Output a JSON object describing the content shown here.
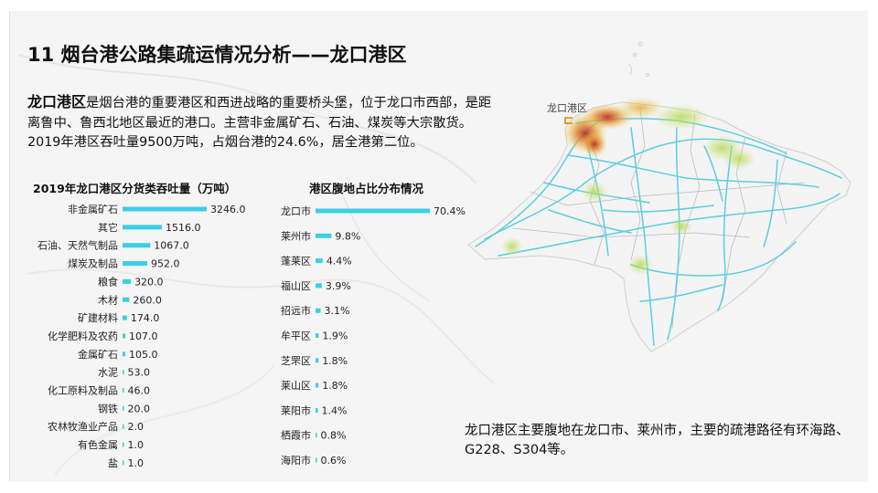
{
  "page": {
    "title": "11 烟台港公路集疏运情况分析——龙口港区",
    "intro_bold": "龙口港区",
    "intro_rest": "是烟台港的重要港区和西进战略的重要桥头堡，位于龙口市西部，是距离鲁中、鲁西北地区最近的港口。主营非金属矿石、石油、煤炭等大宗散货。2019年港区吞吐量9500万吨，占烟台港的24.6%，居全港第二位。",
    "map_label": "龙口港区",
    "note": "龙口港区主要腹地在龙口市、莱州市，主要的疏港路径有环海路、G228、S304等。",
    "bar_color": "#3bcfe6"
  },
  "chart_data": [
    {
      "type": "bar",
      "orientation": "horizontal",
      "title": "2019年龙口港区分货类吞吐量（万吨）",
      "categories": [
        "非金属矿石",
        "其它",
        "石油、天然气制品",
        "煤炭及制品",
        "粮食",
        "木材",
        "矿建材料",
        "化学肥料及农药",
        "金属矿石",
        "水泥",
        "化工原料及制品",
        "钢铁",
        "农林牧渔业产品",
        "有色金属",
        "盐"
      ],
      "values": [
        3246.0,
        1516.0,
        1067.0,
        952.0,
        320.0,
        260.0,
        174.0,
        107.0,
        105.0,
        53.0,
        46.0,
        20.0,
        2.0,
        1.0,
        1.0
      ],
      "labels": [
        "3246.0",
        "1516.0",
        "1067.0",
        "952.0",
        "320.0",
        "260.0",
        "174.0",
        "107.0",
        "105.0",
        "53.0",
        "46.0",
        "20.0",
        "2.0",
        "1.0",
        "1.0"
      ]
    },
    {
      "type": "bar",
      "orientation": "horizontal",
      "title": "港区腹地占比分布情况",
      "categories": [
        "龙口市",
        "莱州市",
        "蓬莱区",
        "福山区",
        "招远市",
        "牟平区",
        "芝罘区",
        "莱山区",
        "莱阳市",
        "栖霞市",
        "海阳市"
      ],
      "values": [
        70.4,
        9.8,
        4.4,
        3.9,
        3.1,
        1.9,
        1.8,
        1.8,
        1.4,
        0.8,
        0.6
      ],
      "labels": [
        "70.4%",
        "9.8%",
        "4.4%",
        "3.9%",
        "3.1%",
        "1.9%",
        "1.8%",
        "1.8%",
        "1.4%",
        "0.8%",
        "0.6%"
      ]
    }
  ]
}
